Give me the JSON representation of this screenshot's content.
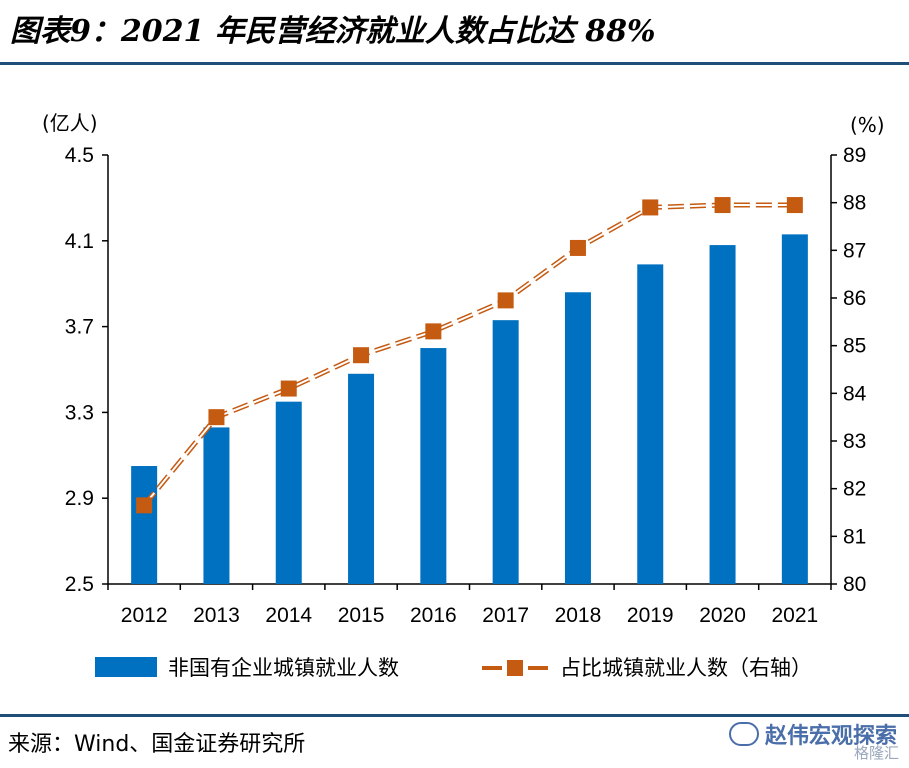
{
  "title": "图表9：2021 年民营经济就业人数占比达 88%",
  "source": "来源：Wind、国金证券研究所",
  "watermark": "赵伟宏观探索",
  "watermark_sub": "格隆汇",
  "colors": {
    "bar": "#0070c0",
    "line": "#c55a11",
    "rule": "#1f4e79"
  },
  "chart_data": {
    "type": "bar",
    "categories": [
      "2012",
      "2013",
      "2014",
      "2015",
      "2016",
      "2017",
      "2018",
      "2019",
      "2020",
      "2021"
    ],
    "y_left": {
      "unit": "(亿人)",
      "ylim": [
        2.5,
        4.5
      ],
      "ticks": [
        "4.5",
        "4.1",
        "3.7",
        "3.3",
        "2.9",
        "2.5"
      ]
    },
    "y_right": {
      "unit": "(%)",
      "ylim": [
        80,
        89
      ],
      "ticks": [
        "89",
        "88",
        "87",
        "86",
        "85",
        "84",
        "83",
        "82",
        "81",
        "80"
      ]
    },
    "series": [
      {
        "name": "非国有企业城镇就业人数",
        "type": "bar",
        "axis": "left",
        "values": [
          3.05,
          3.23,
          3.35,
          3.48,
          3.6,
          3.73,
          3.86,
          3.99,
          4.08,
          4.13
        ]
      },
      {
        "name": "占比城镇就业人数（右轴）",
        "type": "line",
        "axis": "right",
        "values": [
          81.65,
          83.5,
          84.1,
          84.8,
          85.3,
          85.95,
          87.05,
          87.9,
          87.95,
          87.95
        ]
      }
    ],
    "legend": "bottom",
    "grid": false
  }
}
